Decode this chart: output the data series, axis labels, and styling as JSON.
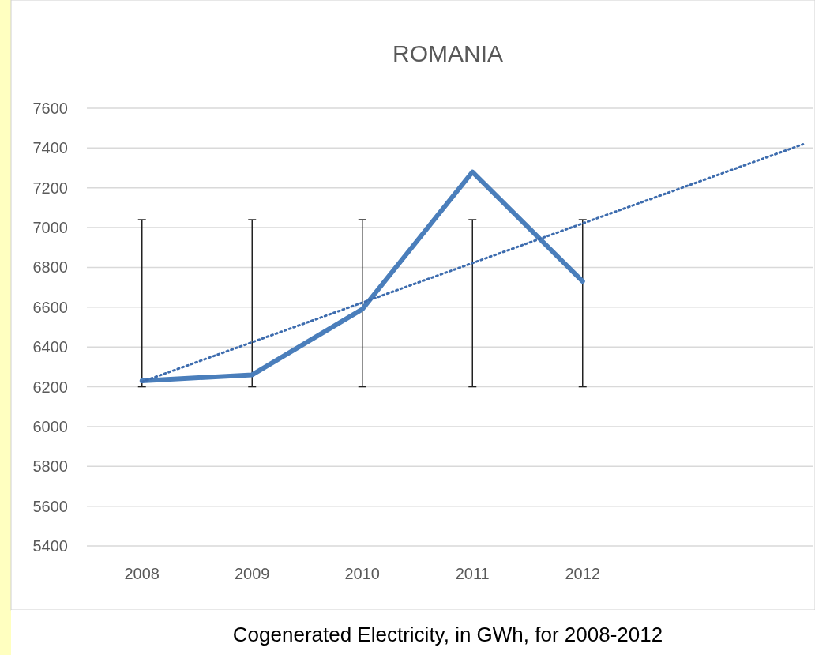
{
  "chart_data": {
    "type": "line",
    "title": "ROMANIA",
    "categories": [
      "2008",
      "2009",
      "2010",
      "2011",
      "2012",
      null,
      null
    ],
    "series": [
      {
        "color": "#4a7ebb",
        "values": [
          6230,
          6260,
          6590,
          7280,
          6730,
          null,
          null
        ],
        "errors": [
          [
            6200,
            7040
          ],
          [
            6200,
            7040
          ],
          [
            6200,
            7040
          ],
          [
            6200,
            7040
          ],
          [
            6200,
            7040
          ],
          null,
          null
        ]
      },
      {
        "type": "line",
        "color": "#3d6cae",
        "line_style": "dotted",
        "values": [
          6225,
          6424,
          6623,
          6822,
          7021,
          7220,
          7419
        ]
      }
    ],
    "ylim": [
      5400,
      7600
    ],
    "yticks": [
      5400,
      5600,
      5800,
      6000,
      6200,
      6400,
      6600,
      6800,
      7000,
      7200,
      7400,
      7600
    ],
    "grid": "y",
    "annotations": [
      "Cogenerated Electricity, in GWh, for 2008-2012"
    ]
  }
}
